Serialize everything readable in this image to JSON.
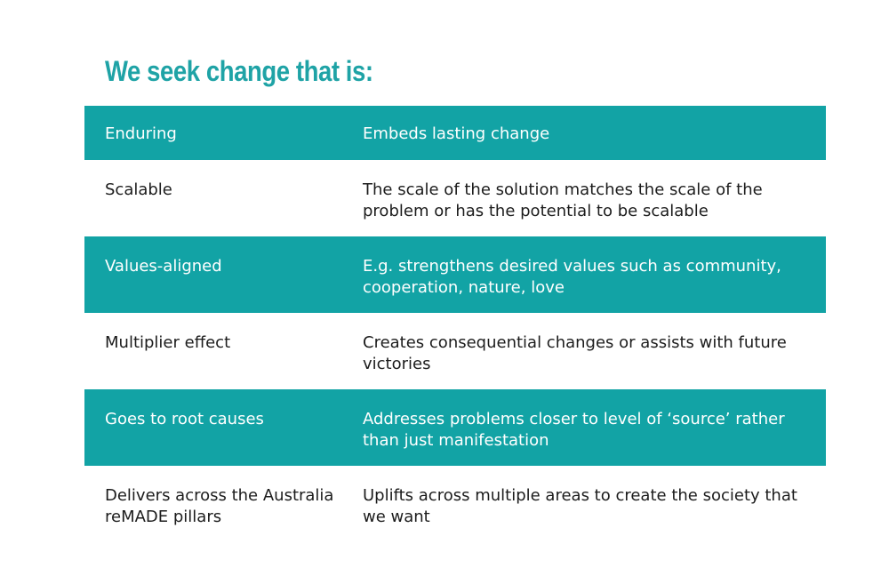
{
  "title": "We seek change that is:",
  "rows": [
    {
      "label": "Enduring",
      "description": "Embeds lasting change"
    },
    {
      "label": "Scalable",
      "description": "The scale of the solution matches the scale of the problem or has the potential to be scalable"
    },
    {
      "label": "Values-aligned",
      "description": "E.g. strengthens desired values such as community, cooperation, nature, love"
    },
    {
      "label": "Multiplier effect",
      "description": "Creates consequential changes or assists with future victories"
    },
    {
      "label": "Goes to root causes",
      "description": "Addresses problems closer to level of ‘source’ rather than just manifestation"
    },
    {
      "label": "Delivers across the Australia reMADE pillars",
      "description": "Uplifts across multiple areas to create the society that we want"
    }
  ],
  "colors": {
    "accent": "#12a3a5",
    "title": "#1fa3a6",
    "text": "#1c1c1c"
  }
}
